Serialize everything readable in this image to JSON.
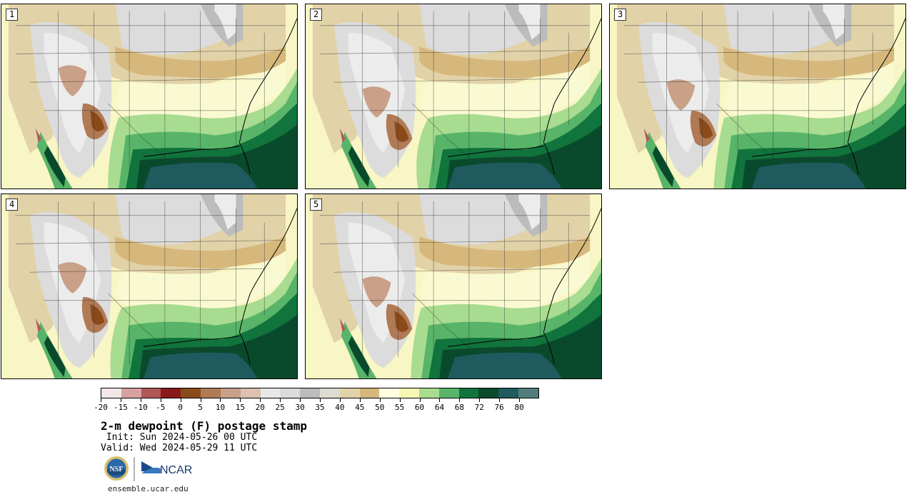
{
  "panels": [
    {
      "label": "1"
    },
    {
      "label": "2"
    },
    {
      "label": "3"
    },
    {
      "label": "4"
    },
    {
      "label": "5"
    }
  ],
  "colorbar": {
    "colors": [
      "#f2e6e6",
      "#d8a0a0",
      "#b05858",
      "#8a1a1a",
      "#8a4a1a",
      "#b07a55",
      "#c9a088",
      "#ddc0b0",
      "#e8e8e8",
      "#dcdcdc",
      "#bcbcbc",
      "#dedbd0",
      "#e2d2a8",
      "#d6b87c",
      "#ffffe0",
      "#f7f7b5",
      "#a8dc90",
      "#58b468",
      "#10743c",
      "#0a4a2c",
      "#1e5a5e",
      "#527c7c"
    ],
    "tick_labels": [
      "-20",
      "-15",
      "-10",
      "-5",
      "0",
      "5",
      "10",
      "15",
      "20",
      "25",
      "30",
      "35",
      "40",
      "45",
      "50",
      "55",
      "60",
      "64",
      "68",
      "72",
      "76",
      "80"
    ]
  },
  "title": "2-m dewpoint (F) postage stamp",
  "init": " Init: Sun 2024-05-26 00 UTC",
  "valid": "Valid: Wed 2024-05-29 11 UTC",
  "logos": {
    "nsf": "NSF",
    "ncar": "NCAR"
  },
  "url": "ensemble.ucar.edu"
}
